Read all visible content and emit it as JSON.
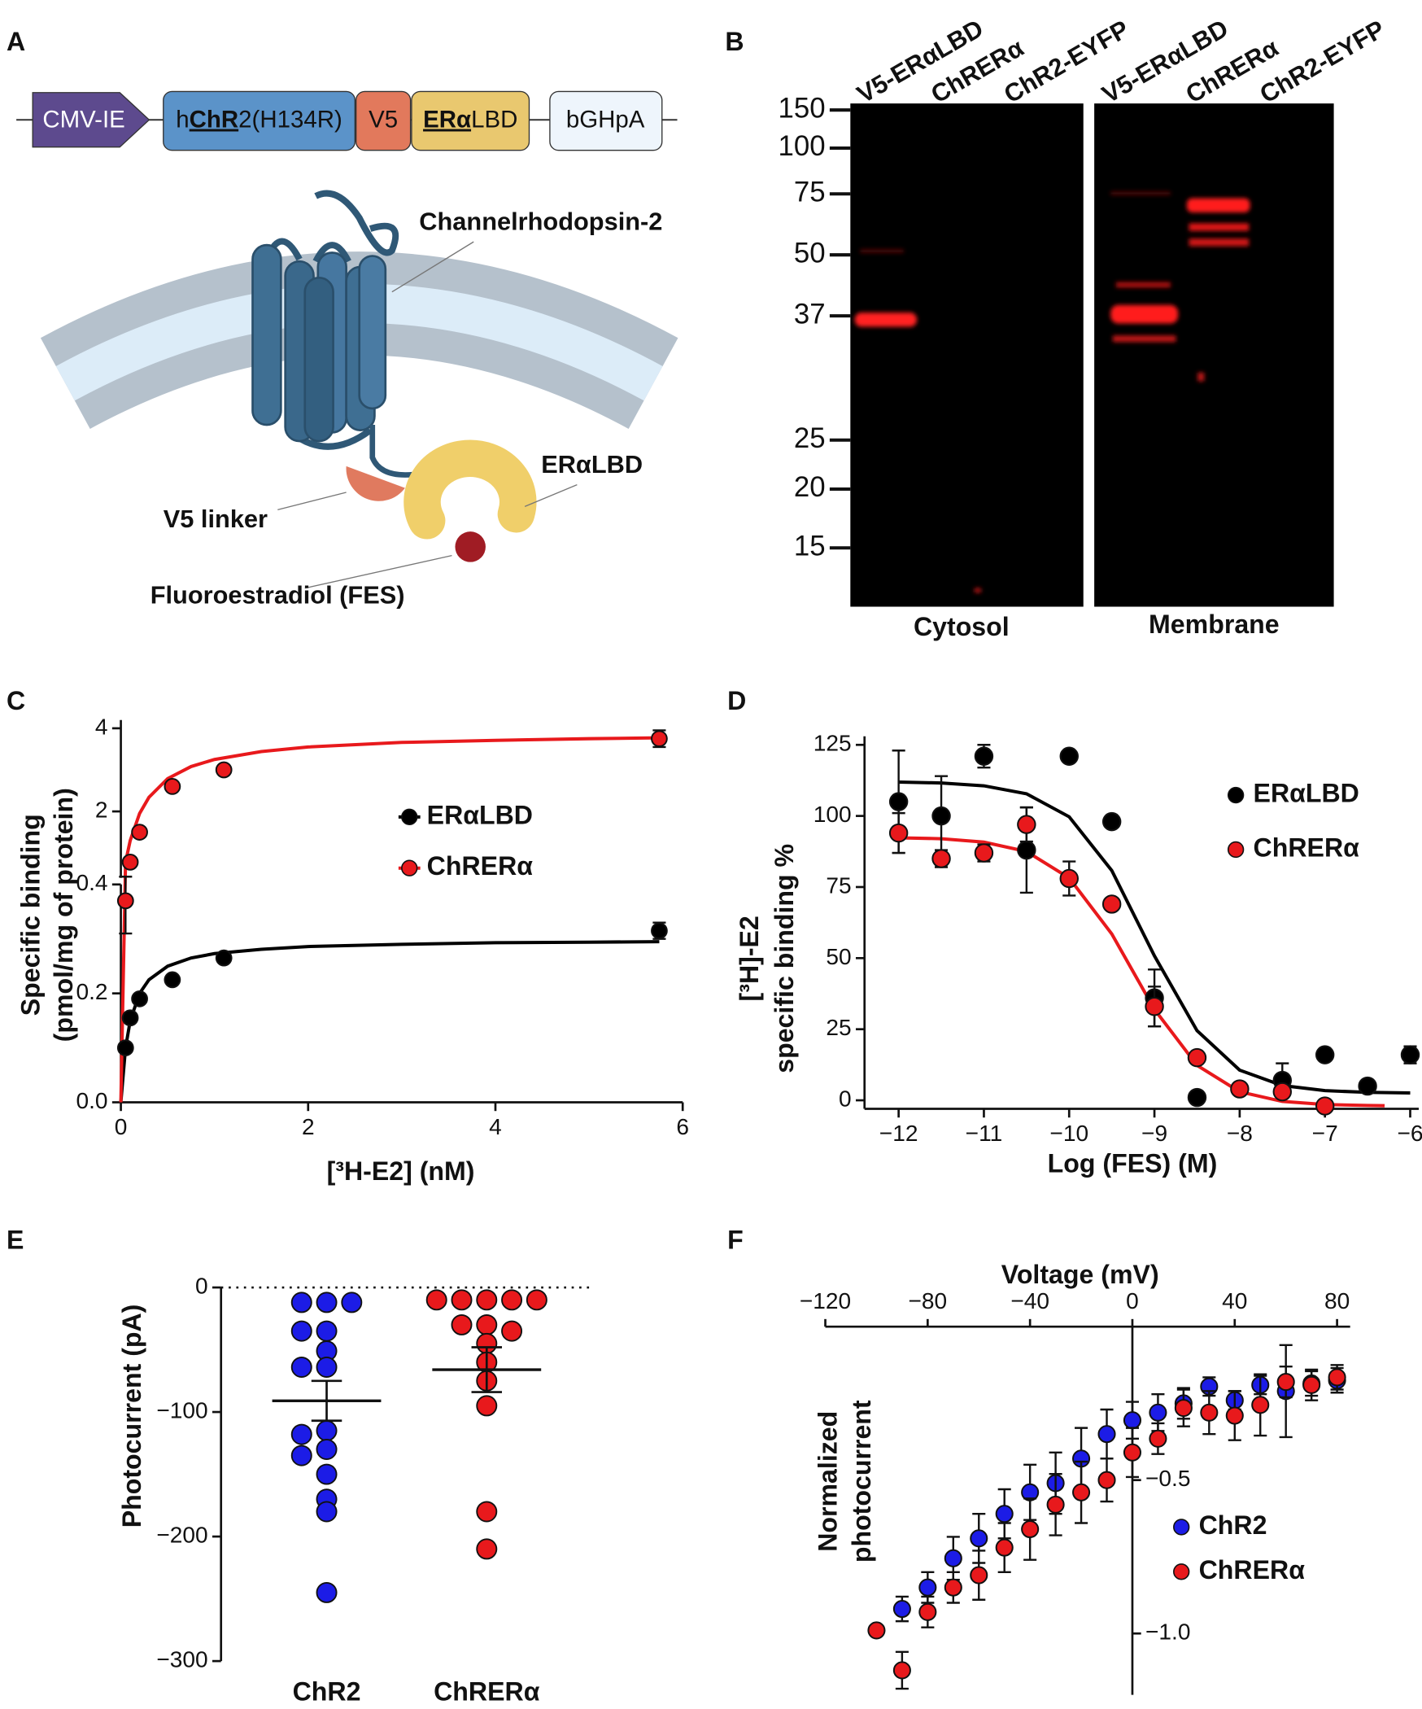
{
  "panel_labels": [
    "A",
    "B",
    "C",
    "D",
    "E",
    "F"
  ],
  "panel_a": {
    "construct": {
      "promoter": "CMV-IE",
      "chr2": [
        "h",
        "ChR",
        "2(H134R)"
      ],
      "tag": "V5",
      "lbd": [
        "ERα",
        "LBD"
      ],
      "polya": "bGHpA"
    },
    "labels": {
      "channel": "Channelrhodopsin-2",
      "lbd": "ERαLBD",
      "linker": "V5 linker",
      "ligand": "Fluoroestradiol (FES)"
    }
  },
  "panel_b": {
    "lanes": [
      "V5-ERαLBD",
      "ChRERα",
      "ChR2-EYFP",
      "V5-ERαLBD",
      "ChRERα",
      "ChR2-EYFP"
    ],
    "markers": [
      150,
      100,
      75,
      50,
      37,
      25,
      20,
      15
    ],
    "fractions": [
      "Cytosol",
      "Membrane"
    ]
  },
  "chart_data": [
    {
      "type": "scatter",
      "xlabel": "[³H-E2] (nM)",
      "ylabel": [
        "Specific binding",
        "(pmol/mg of protein)"
      ],
      "xlim": [
        0,
        6
      ],
      "xticks": [
        0,
        2,
        4,
        6
      ],
      "ylim": [
        0,
        4.2
      ],
      "y_break": 0.4,
      "yticks": [
        {
          "value": 0,
          "label": "0.0"
        },
        0.2,
        0.4,
        2,
        4
      ],
      "legend": "right",
      "series": [
        {
          "name": "ERαLBD",
          "color": "#000000",
          "x": [
            0.05,
            0.1,
            0.2,
            0.55,
            1.1,
            5.75
          ],
          "values": [
            0.1,
            0.155,
            0.19,
            0.225,
            0.265,
            0.315
          ],
          "errors": [
            null,
            null,
            null,
            null,
            null,
            0.015
          ],
          "fit_x": [
            0,
            0.05,
            0.1,
            0.2,
            0.3,
            0.5,
            0.75,
            1,
            1.5,
            2,
            3,
            4,
            5,
            5.75
          ],
          "fit_y": [
            0,
            0.1,
            0.15,
            0.2,
            0.225,
            0.25,
            0.265,
            0.273,
            0.281,
            0.286,
            0.29,
            0.293,
            0.294,
            0.295
          ]
        },
        {
          "name": "ChRERα",
          "color": "#e8191c",
          "x": [
            0.05,
            0.1,
            0.2,
            0.55,
            1.1,
            5.75
          ],
          "values": [
            0.37,
            0.78,
            1.5,
            2.6,
            3.0,
            3.75
          ],
          "errors": [
            0.06,
            null,
            null,
            null,
            null,
            0.2
          ],
          "fit_x": [
            0,
            0.05,
            0.1,
            0.2,
            0.3,
            0.5,
            0.75,
            1,
            1.5,
            2,
            3,
            4,
            5,
            5.75
          ],
          "fit_y": [
            0,
            0.78,
            1.3,
            1.95,
            2.34,
            2.79,
            3.08,
            3.25,
            3.44,
            3.55,
            3.66,
            3.71,
            3.75,
            3.77
          ]
        }
      ]
    },
    {
      "type": "scatter",
      "xlabel": "Log (FES) (M)",
      "ylabel": [
        "[³H]-E2",
        "specific binding %"
      ],
      "xlim": [
        -12.4,
        -5.9
      ],
      "xticks": [
        {
          "value": -12,
          "label": "−12"
        },
        {
          "value": -11,
          "label": "−11"
        },
        {
          "value": -10,
          "label": "−10"
        },
        {
          "value": -9,
          "label": "−9"
        },
        {
          "value": -8,
          "label": "−8"
        },
        {
          "value": -7,
          "label": "−7"
        },
        {
          "value": -6,
          "label": "−6"
        }
      ],
      "ylim": [
        -3,
        128
      ],
      "yticks": [
        0,
        25,
        50,
        75,
        100,
        125
      ],
      "legend": "upper right",
      "series": [
        {
          "name": "ERαLBD",
          "color": "#000000",
          "x": [
            -12,
            -11.5,
            -11,
            -10.5,
            -10,
            -9.5,
            -9,
            -8.5,
            -7.5,
            -7,
            -6.5,
            -6
          ],
          "values": [
            105,
            100,
            121,
            88,
            121,
            98,
            36,
            1,
            7,
            16,
            5,
            16
          ],
          "errors": [
            18,
            14,
            4,
            15,
            null,
            null,
            10,
            null,
            6,
            2,
            2,
            3
          ],
          "fit_x": [
            -12,
            -11.5,
            -11,
            -10.5,
            -10,
            -9.5,
            -9,
            -8.5,
            -8,
            -7.5,
            -7,
            -6.5,
            -6
          ],
          "fit_y": [
            111.9,
            111.6,
            110.6,
            107.8,
            99.7,
            80.8,
            50.8,
            24.5,
            10.6,
            5.2,
            3.4,
            2.8,
            2.6
          ]
        },
        {
          "name": "ChRERα",
          "color": "#e8191c",
          "x": [
            -12,
            -11.5,
            -11,
            -10.5,
            -10,
            -9.5,
            -9,
            -8.5,
            -8,
            -7.5,
            -7
          ],
          "values": [
            94,
            85,
            87,
            97,
            78,
            69,
            33,
            15,
            4,
            3,
            -2
          ],
          "errors": [
            7,
            3,
            3,
            6,
            6,
            2,
            7,
            null,
            null,
            null,
            null
          ],
          "fit_x": [
            -12,
            -11.5,
            -11,
            -10.5,
            -10,
            -9.5,
            -9,
            -8.5,
            -8,
            -7.5,
            -7,
            -6.5,
            -6.3
          ],
          "fit_y": [
            92.3,
            92.0,
            90.8,
            87.5,
            78.2,
            58.5,
            32.0,
            12.3,
            3.0,
            -0.4,
            -1.5,
            -1.8,
            -1.9
          ]
        }
      ]
    },
    {
      "type": "strip",
      "ylabel": "Photocurrent (pA)",
      "categories": [
        "ChR2",
        "ChRERα"
      ],
      "ylim": [
        -300,
        0
      ],
      "yticks": [
        0,
        {
          "value": -100,
          "label": "−100"
        },
        {
          "value": -200,
          "label": "−200"
        },
        {
          "value": -300,
          "label": "−300"
        }
      ],
      "series": [
        {
          "color": "#1c1ce6",
          "values": [
            -12,
            -12,
            -12,
            -35,
            -35,
            -51,
            -64,
            -64,
            -115,
            -118,
            -130,
            -135,
            -150,
            -170,
            -180,
            -245
          ],
          "mean": -91,
          "sem": 16
        },
        {
          "color": "#e8191c",
          "values": [
            -10,
            -10,
            -10,
            -10,
            -10,
            -30,
            -30,
            -35,
            -45,
            -60,
            -75,
            -95,
            -180,
            -210
          ],
          "mean": -66,
          "sem": 18
        }
      ]
    },
    {
      "type": "scatter",
      "xlabel": "Voltage (mV)",
      "ylabel": [
        "Normalized",
        "photocurrent"
      ],
      "xlim": [
        -120,
        80
      ],
      "xticks": [
        {
          "value": -120,
          "label": "−120"
        },
        {
          "value": -80,
          "label": "−80"
        },
        {
          "value": -40,
          "label": "−40"
        },
        0,
        40,
        80
      ],
      "ylim": [
        -1.2,
        0
      ],
      "yticks": [
        {
          "value": -0.5,
          "label": "−0.5"
        },
        {
          "value": -1,
          "label": "−1.0"
        }
      ],
      "legend": "lower right",
      "series": [
        {
          "name": "ChR2",
          "color": "#1c1ce6",
          "x": [
            -90,
            -80,
            -70,
            -60,
            -50,
            -40,
            -30,
            -20,
            -10,
            0,
            10,
            20,
            30,
            40,
            50,
            60,
            70,
            80
          ],
          "values": [
            -0.92,
            -0.85,
            -0.755,
            -0.69,
            -0.61,
            -0.54,
            -0.51,
            -0.43,
            -0.35,
            -0.305,
            -0.28,
            -0.25,
            -0.195,
            -0.24,
            -0.19,
            -0.21,
            -0.185,
            -0.175
          ],
          "errors": [
            0.04,
            0.05,
            0.07,
            0.08,
            0.08,
            0.09,
            0.1,
            0.1,
            0.08,
            0.06,
            0.06,
            0.05,
            0.03,
            0.03,
            0.03,
            0.15,
            0.04,
            0.04
          ]
        },
        {
          "name": "ChRERα",
          "color": "#e8191c",
          "x": [
            -100,
            -90,
            -80,
            -70,
            -60,
            -50,
            -40,
            -30,
            -20,
            -10,
            0,
            10,
            20,
            30,
            40,
            50,
            60,
            70,
            80
          ],
          "values": [
            -0.99,
            -1.12,
            -0.93,
            -0.85,
            -0.81,
            -0.72,
            -0.66,
            -0.58,
            -0.54,
            -0.5,
            -0.41,
            -0.365,
            -0.265,
            -0.28,
            -0.29,
            -0.255,
            -0.18,
            -0.19,
            -0.165
          ],
          "errors": [
            null,
            0.06,
            0.05,
            0.05,
            0.08,
            0.08,
            0.1,
            0.1,
            0.1,
            0.07,
            0.08,
            0.05,
            0.06,
            0.07,
            0.08,
            0.1,
            0.05,
            0.05,
            0.04
          ]
        }
      ]
    }
  ]
}
